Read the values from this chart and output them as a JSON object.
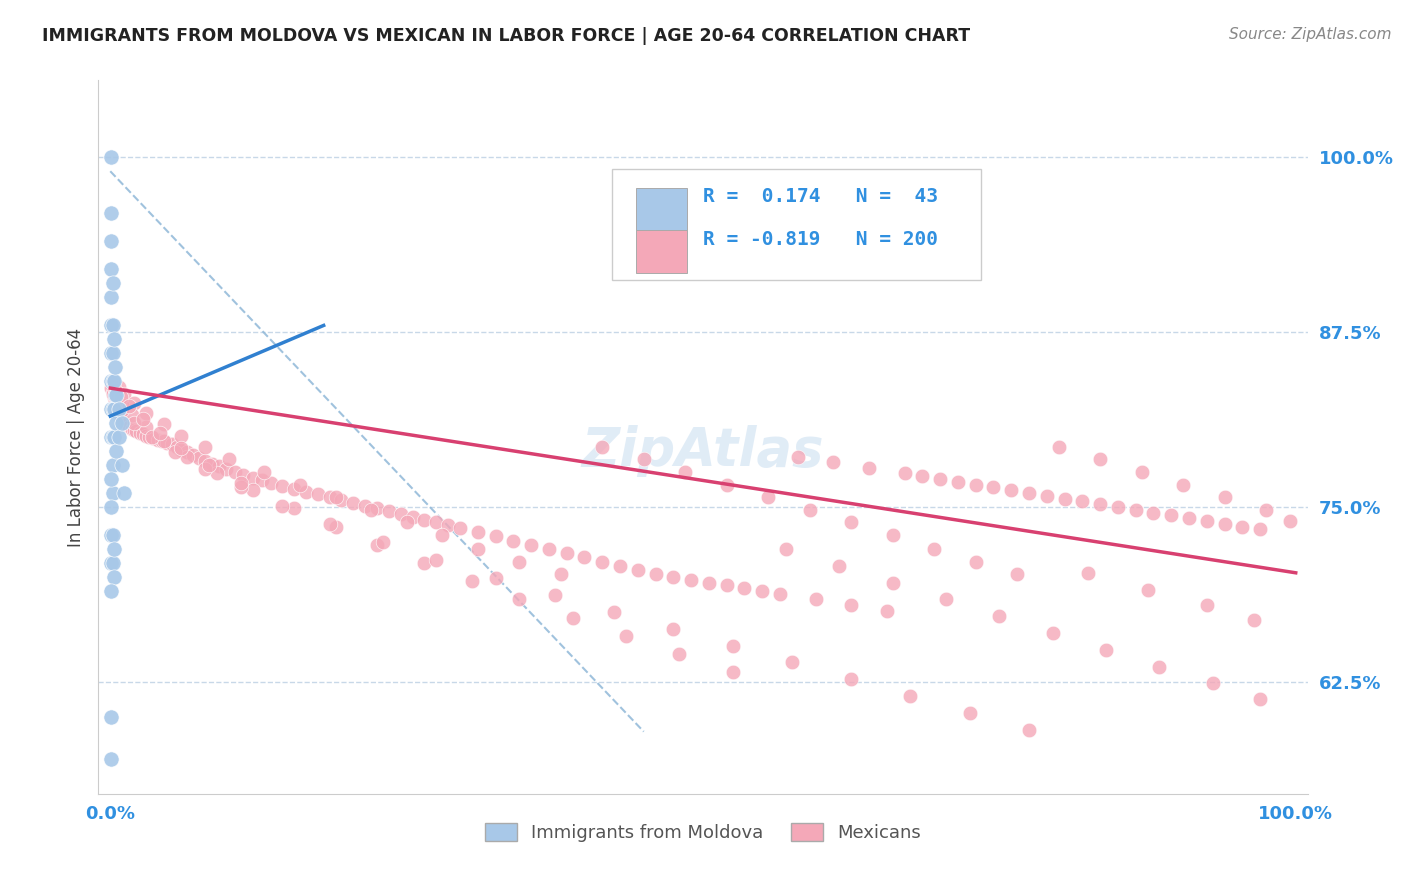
{
  "title": "IMMIGRANTS FROM MOLDOVA VS MEXICAN IN LABOR FORCE | AGE 20-64 CORRELATION CHART",
  "source": "Source: ZipAtlas.com",
  "ylabel": "In Labor Force | Age 20-64",
  "xlim": [
    -0.01,
    1.01
  ],
  "ylim": [
    0.545,
    1.055
  ],
  "yticks": [
    0.625,
    0.75,
    0.875,
    1.0
  ],
  "ytick_labels": [
    "62.5%",
    "75.0%",
    "87.5%",
    "100.0%"
  ],
  "xtick_labels": [
    "0.0%",
    "100.0%"
  ],
  "xticks": [
    0.0,
    1.0
  ],
  "moldova_R": 0.174,
  "moldova_N": 43,
  "mexican_R": -0.819,
  "mexican_N": 200,
  "moldova_color": "#a8c8e8",
  "mexican_color": "#f4a8b8",
  "moldova_line_color": "#3080d0",
  "mexican_line_color": "#d84070",
  "dashed_line_color": "#90b8d8",
  "background_color": "#ffffff",
  "grid_color": "#c8d8e8",
  "title_color": "#222222",
  "axis_label_color": "#3090e0",
  "moldova_scatter_x": [
    0.001,
    0.001,
    0.001,
    0.001,
    0.001,
    0.001,
    0.001,
    0.001,
    0.001,
    0.001,
    0.002,
    0.002,
    0.002,
    0.002,
    0.002,
    0.002,
    0.002,
    0.002,
    0.003,
    0.003,
    0.003,
    0.003,
    0.004,
    0.004,
    0.005,
    0.005,
    0.005,
    0.007,
    0.007,
    0.01,
    0.01,
    0.012,
    0.001,
    0.001,
    0.001,
    0.001,
    0.002,
    0.002,
    0.003,
    0.003,
    0.001,
    0.001,
    0.001
  ],
  "moldova_scatter_y": [
    1.0,
    0.96,
    0.94,
    0.92,
    0.9,
    0.88,
    0.86,
    0.84,
    0.82,
    0.8,
    0.91,
    0.88,
    0.86,
    0.84,
    0.82,
    0.8,
    0.78,
    0.76,
    0.87,
    0.84,
    0.82,
    0.8,
    0.85,
    0.83,
    0.83,
    0.81,
    0.79,
    0.82,
    0.8,
    0.81,
    0.78,
    0.76,
    0.77,
    0.75,
    0.73,
    0.71,
    0.73,
    0.71,
    0.72,
    0.7,
    0.69,
    0.6,
    0.57
  ],
  "mexican_scatter_x": [
    0.001,
    0.002,
    0.003,
    0.004,
    0.005,
    0.006,
    0.007,
    0.008,
    0.009,
    0.01,
    0.012,
    0.014,
    0.016,
    0.018,
    0.02,
    0.022,
    0.025,
    0.028,
    0.03,
    0.033,
    0.036,
    0.04,
    0.044,
    0.048,
    0.052,
    0.056,
    0.06,
    0.065,
    0.07,
    0.075,
    0.08,
    0.086,
    0.092,
    0.098,
    0.105,
    0.112,
    0.12,
    0.128,
    0.136,
    0.145,
    0.155,
    0.165,
    0.175,
    0.185,
    0.195,
    0.205,
    0.215,
    0.225,
    0.235,
    0.245,
    0.255,
    0.265,
    0.275,
    0.285,
    0.295,
    0.31,
    0.325,
    0.34,
    0.355,
    0.37,
    0.385,
    0.4,
    0.415,
    0.43,
    0.445,
    0.46,
    0.475,
    0.49,
    0.505,
    0.52,
    0.535,
    0.55,
    0.565,
    0.58,
    0.595,
    0.61,
    0.625,
    0.64,
    0.655,
    0.67,
    0.685,
    0.7,
    0.715,
    0.73,
    0.745,
    0.76,
    0.775,
    0.79,
    0.805,
    0.82,
    0.835,
    0.85,
    0.865,
    0.88,
    0.895,
    0.91,
    0.925,
    0.94,
    0.955,
    0.97,
    0.003,
    0.007,
    0.012,
    0.02,
    0.03,
    0.045,
    0.06,
    0.08,
    0.1,
    0.13,
    0.16,
    0.19,
    0.22,
    0.25,
    0.28,
    0.31,
    0.345,
    0.38,
    0.415,
    0.45,
    0.485,
    0.52,
    0.555,
    0.59,
    0.625,
    0.66,
    0.695,
    0.73,
    0.765,
    0.8,
    0.835,
    0.87,
    0.905,
    0.94,
    0.975,
    0.995,
    0.005,
    0.01,
    0.018,
    0.03,
    0.045,
    0.065,
    0.09,
    0.12,
    0.155,
    0.19,
    0.225,
    0.265,
    0.305,
    0.345,
    0.39,
    0.435,
    0.48,
    0.525,
    0.57,
    0.615,
    0.66,
    0.705,
    0.75,
    0.795,
    0.84,
    0.885,
    0.93,
    0.97,
    0.002,
    0.005,
    0.01,
    0.02,
    0.035,
    0.055,
    0.08,
    0.11,
    0.145,
    0.185,
    0.23,
    0.275,
    0.325,
    0.375,
    0.425,
    0.475,
    0.525,
    0.575,
    0.625,
    0.675,
    0.725,
    0.775,
    0.825,
    0.875,
    0.925,
    0.965,
    0.004,
    0.009,
    0.016,
    0.028,
    0.042,
    0.06,
    0.083,
    0.11
  ],
  "mexican_scatter_y": [
    0.835,
    0.832,
    0.829,
    0.826,
    0.823,
    0.821,
    0.819,
    0.817,
    0.815,
    0.813,
    0.811,
    0.809,
    0.807,
    0.806,
    0.805,
    0.804,
    0.803,
    0.802,
    0.801,
    0.8,
    0.799,
    0.798,
    0.797,
    0.796,
    0.795,
    0.793,
    0.791,
    0.789,
    0.787,
    0.785,
    0.783,
    0.781,
    0.779,
    0.777,
    0.775,
    0.773,
    0.771,
    0.769,
    0.767,
    0.765,
    0.763,
    0.761,
    0.759,
    0.757,
    0.755,
    0.753,
    0.751,
    0.749,
    0.747,
    0.745,
    0.743,
    0.741,
    0.739,
    0.737,
    0.735,
    0.732,
    0.729,
    0.726,
    0.723,
    0.72,
    0.717,
    0.714,
    0.711,
    0.708,
    0.705,
    0.702,
    0.7,
    0.698,
    0.696,
    0.694,
    0.692,
    0.69,
    0.688,
    0.786,
    0.684,
    0.782,
    0.68,
    0.778,
    0.676,
    0.774,
    0.772,
    0.77,
    0.768,
    0.766,
    0.764,
    0.762,
    0.76,
    0.758,
    0.756,
    0.754,
    0.752,
    0.75,
    0.748,
    0.746,
    0.744,
    0.742,
    0.74,
    0.738,
    0.736,
    0.734,
    0.84,
    0.836,
    0.831,
    0.824,
    0.817,
    0.809,
    0.801,
    0.793,
    0.784,
    0.775,
    0.766,
    0.757,
    0.748,
    0.739,
    0.73,
    0.72,
    0.711,
    0.702,
    0.793,
    0.784,
    0.775,
    0.766,
    0.757,
    0.748,
    0.739,
    0.73,
    0.72,
    0.711,
    0.702,
    0.793,
    0.784,
    0.775,
    0.766,
    0.757,
    0.748,
    0.74,
    0.828,
    0.823,
    0.816,
    0.807,
    0.797,
    0.786,
    0.774,
    0.762,
    0.749,
    0.736,
    0.723,
    0.71,
    0.697,
    0.684,
    0.671,
    0.658,
    0.645,
    0.632,
    0.72,
    0.708,
    0.696,
    0.684,
    0.672,
    0.66,
    0.648,
    0.636,
    0.624,
    0.613,
    0.831,
    0.826,
    0.819,
    0.81,
    0.8,
    0.789,
    0.777,
    0.764,
    0.751,
    0.738,
    0.725,
    0.712,
    0.699,
    0.687,
    0.675,
    0.663,
    0.651,
    0.639,
    0.627,
    0.615,
    0.603,
    0.591,
    0.703,
    0.691,
    0.68,
    0.669,
    0.834,
    0.829,
    0.822,
    0.813,
    0.803,
    0.792,
    0.78,
    0.767
  ]
}
